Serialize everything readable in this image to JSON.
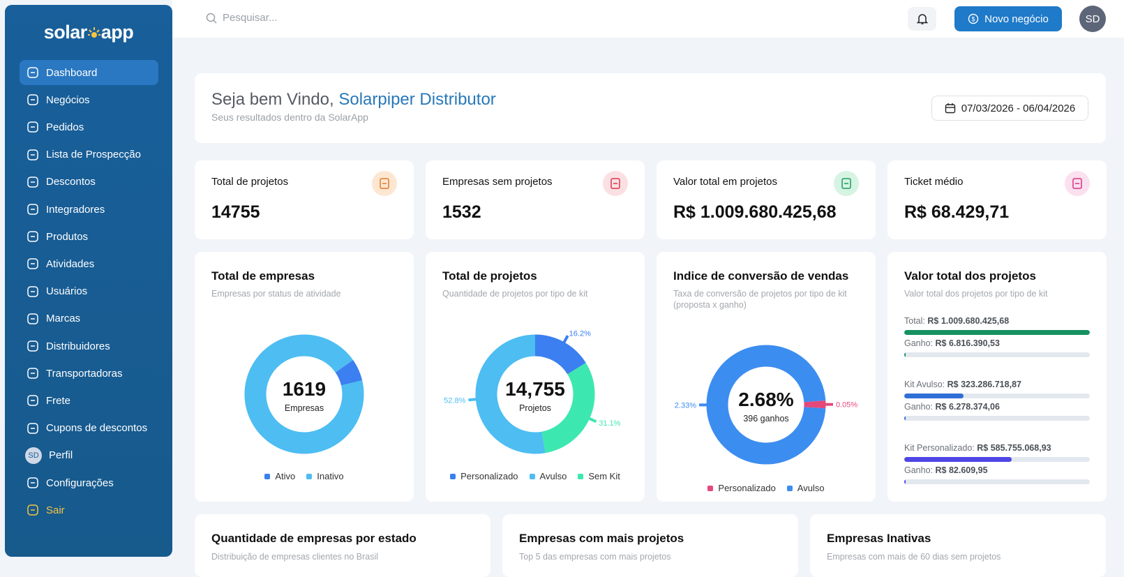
{
  "sidebar": {
    "logo": {
      "left": "solar",
      "right": "app"
    },
    "nav": [
      "Dashboard",
      "Negócios",
      "Pedidos",
      "Lista de Prospecção",
      "Descontos",
      "Integradores",
      "Produtos",
      "Atividades",
      "Usuários",
      "Marcas",
      "Distribuidores",
      "Transportadoras",
      "Frete",
      "Cupons de descontos"
    ],
    "profile": {
      "avatar": "SD",
      "label": "Perfil"
    },
    "settings": "Configurações",
    "logout": "Sair"
  },
  "topbar": {
    "search": "Pesquisar...",
    "button": "Novo negócio",
    "avatar": "SD"
  },
  "welcome": {
    "greeting": "Seja bem Vindo,",
    "name": "Solarpiper Distributor",
    "subtitle": "Seus resultados dentro da SolarApp",
    "date_range": "07/03/2026 - 06/04/2026"
  },
  "stats": [
    {
      "label": "Total de projetos",
      "value": "14755"
    },
    {
      "label": "Empresas sem projetos",
      "value": "1532"
    },
    {
      "label": "Valor total em projetos",
      "value": "R$ 1.009.680.425,68"
    },
    {
      "label": "Ticket médio",
      "value": "R$ 68.429,71"
    }
  ],
  "chart_data": [
    {
      "type": "pie",
      "title": "Total de empresas",
      "subtitle": "Empresas por status de atividade",
      "center_value": "1619",
      "center_label": "Empresas",
      "categories": [
        "Ativo",
        "Inativo"
      ],
      "values": [
        6,
        94
      ],
      "colors": [
        "#3b7ff0",
        "#4dbdf2"
      ]
    },
    {
      "type": "pie",
      "title": "Total de projetos",
      "subtitle": "Quantidade de projetos por tipo de kit",
      "center_value": "14,755",
      "center_label": "Projetos",
      "categories": [
        "Personalizado",
        "Avulso",
        "Sem Kit"
      ],
      "values": [
        16.2,
        52.8,
        31.1
      ],
      "value_labels": [
        "16.2%",
        "52.8%",
        "31.1%"
      ],
      "colors": [
        "#3b7ff0",
        "#4dbdf2",
        "#3de8b0"
      ]
    },
    {
      "type": "pie",
      "title": "Indice de conversão de vendas",
      "subtitle": "Taxa de conversão de projetos por tipo de kit (proposta x ganho)",
      "center_value": "2.68%",
      "center_label": "396 ganhos",
      "categories": [
        "Personalizado",
        "Avulso"
      ],
      "values": [
        0.05,
        2.33
      ],
      "value_labels": [
        "0.05%",
        "2.33%"
      ],
      "colors": [
        "#e5487a",
        "#3c8df0"
      ]
    }
  ],
  "projects_value": {
    "title": "Valor total dos projetos",
    "subtitle": "Valor total dos projetos por tipo de kit",
    "gain_label": "Ganho:",
    "groups": [
      {
        "label": "Total:",
        "value": 1009680425.68,
        "value_label": "R$ 1.009.680.425,68",
        "color": "#16915f",
        "gain": 6816390.53,
        "gain_label": "R$ 6.816.390,53",
        "gain_color": "#16915f"
      },
      {
        "label": "Kit Avulso:",
        "value": 323286718.87,
        "value_label": "R$ 323.286.718,87",
        "color": "#2f6fd6",
        "gain": 6278374.06,
        "gain_label": "R$ 6.278.374,06",
        "gain_color": "#2f6fd6"
      },
      {
        "label": "Kit Personalizado:",
        "value": 585755068.93,
        "value_label": "R$ 585.755.068,93",
        "color": "#4f46e5",
        "gain": 82609.95,
        "gain_label": "R$ 82.609,95",
        "gain_color": "#4f46e5"
      }
    ]
  },
  "bottom_cards": [
    {
      "title": "Quantidade de empresas por estado",
      "subtitle": "Distribuição de empresas clientes no Brasil"
    },
    {
      "title": "Empresas com mais projetos",
      "subtitle": "Top 5 das empresas com mais projetos"
    },
    {
      "title": "Empresas Inativas",
      "subtitle": "Empresas com mais de 60 dias sem projetos"
    }
  ]
}
